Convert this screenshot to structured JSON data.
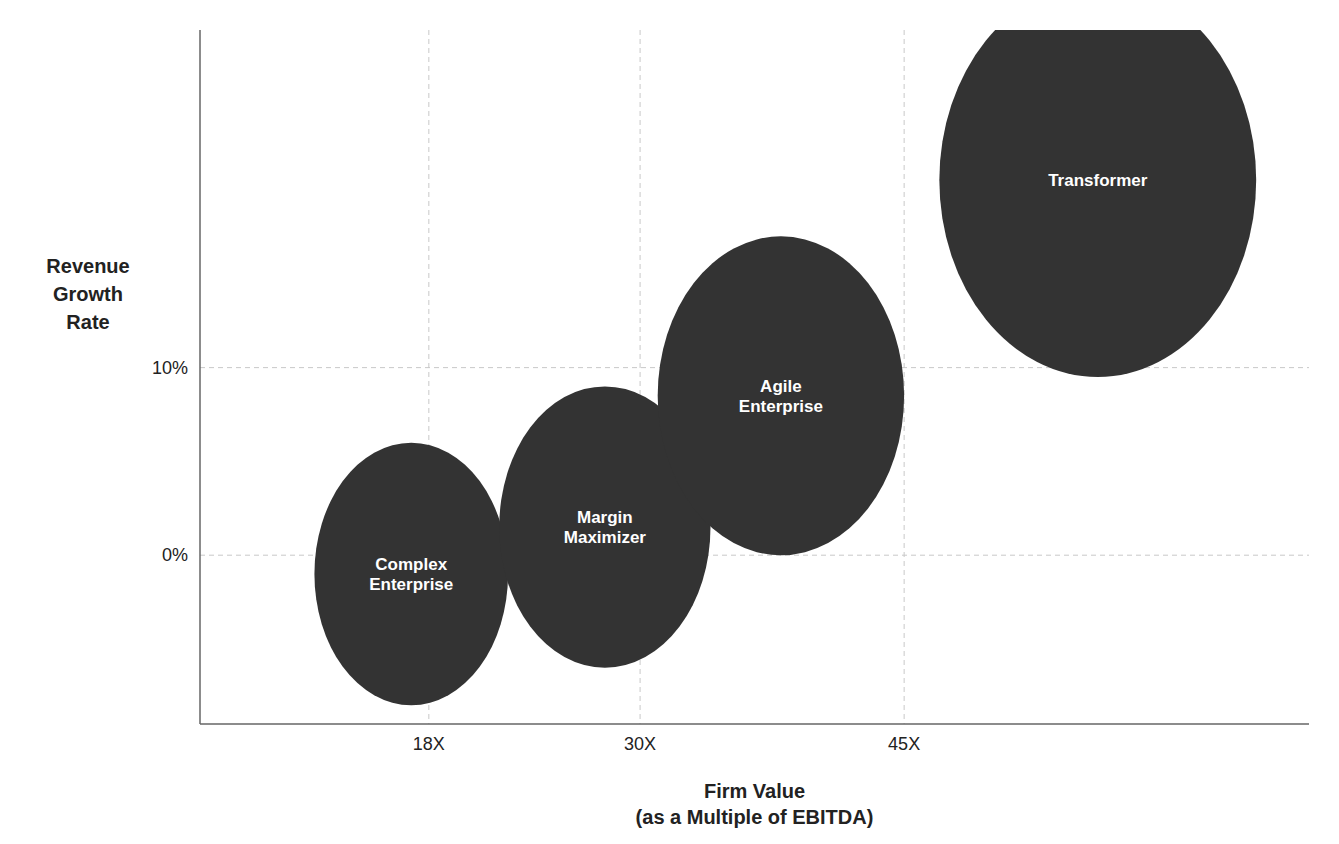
{
  "chart_data": {
    "type": "bubble",
    "xlabel": "Firm Value\n(as a Multiple of EBITDA)",
    "ylabel": "Revenue\nGrowth\nRate",
    "xlim": [
      5,
      68
    ],
    "ylim": [
      -9,
      28
    ],
    "xticks": [
      {
        "value": 18,
        "label": "18X"
      },
      {
        "value": 30,
        "label": "30X"
      },
      {
        "value": 45,
        "label": "45X"
      }
    ],
    "yticks": [
      {
        "value": 0,
        "label": "0%"
      },
      {
        "value": 10,
        "label": "10%"
      }
    ],
    "grid": true,
    "color": "#333333",
    "x": [
      17,
      28,
      38,
      56
    ],
    "values": [
      -1.0,
      1.5,
      8.5,
      20.0
    ],
    "rx": [
      5.5,
      6.0,
      7.0,
      9.0
    ],
    "ry": [
      7.0,
      7.5,
      8.5,
      10.5
    ],
    "labels": [
      "Complex\nEnterprise",
      "Margin\nMaximizer",
      "Agile\nEnterprise",
      "Transformer"
    ]
  }
}
